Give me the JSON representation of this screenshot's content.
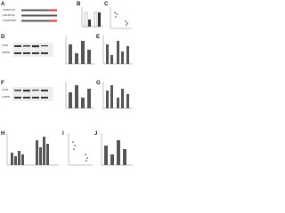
{
  "panels": [
    {
      "label": "A",
      "texts": [
        "VCAN3'-WT",
        "miR-497-5p",
        "VCAN3'-MUT"
      ]
    },
    {
      "label": "B"
    },
    {
      "label": "C"
    },
    {
      "label": "D",
      "texts": [
        "VCAN",
        "GAPDH"
      ]
    },
    {
      "label": "E"
    },
    {
      "label": "F",
      "texts": [
        "VCAN",
        "GAPDH"
      ]
    },
    {
      "label": "G"
    },
    {
      "label": "H"
    },
    {
      "label": "I"
    },
    {
      "label": "J"
    }
  ]
}
